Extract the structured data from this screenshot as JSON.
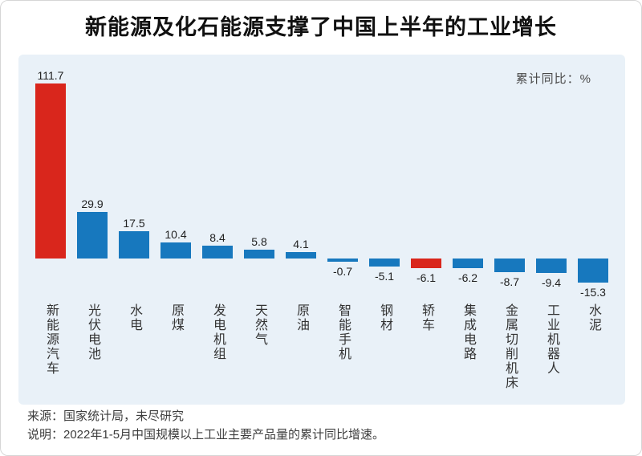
{
  "title": "新能源及化石能源支撑了中国上半年的工业增长",
  "unit_label": "累计同比：%",
  "source": "来源：国家统计局，未尽研究",
  "note": "说明：2022年1-5月中国规模以上工业主要产品量的累计同比增速。",
  "colors": {
    "red": "#d9261c",
    "blue": "#1778be",
    "panel_bg": "#e9f1f8",
    "value_text": "#222222",
    "category_text": "#333333"
  },
  "chart_data": {
    "type": "bar",
    "title": "新能源及化石能源支撑了中国上半年的工业增长",
    "ylabel": "累计同比：%",
    "categories": [
      "新能源汽车",
      "光伏电池",
      "水电",
      "原煤",
      "发电机组",
      "天然气",
      "原油",
      "智能手机",
      "钢材",
      "轿车",
      "集成电路",
      "金属切削机床",
      "工业机器人",
      "水泥"
    ],
    "values": [
      111.7,
      29.9,
      17.5,
      10.4,
      8.4,
      5.8,
      4.1,
      -0.7,
      -5.1,
      -6.1,
      -6.2,
      -8.7,
      -9.4,
      -15.3
    ],
    "bar_colors": [
      "red",
      "blue",
      "blue",
      "blue",
      "blue",
      "blue",
      "blue",
      "blue",
      "blue",
      "red",
      "blue",
      "blue",
      "blue",
      "blue"
    ],
    "ylim": [
      -20,
      120
    ],
    "grid": false,
    "legend_position": "top-right",
    "value_labels": true,
    "category_label_orientation": "vertical"
  }
}
